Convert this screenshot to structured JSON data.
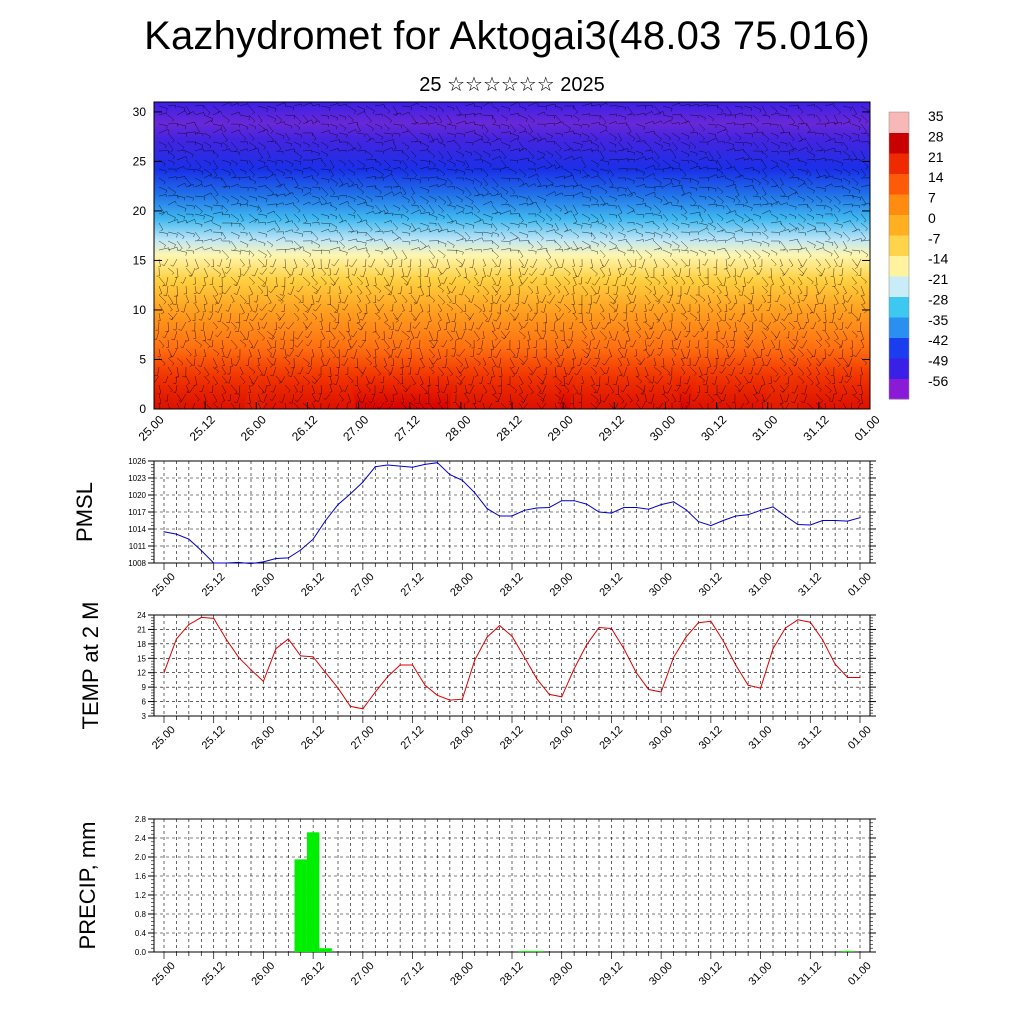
{
  "header": {
    "title": "Kazhydromet for Aktogai3(48.03 75.016)",
    "subtitle": "25 ☆☆☆☆☆☆ 2025"
  },
  "time_labels": [
    "25.00",
    "25.12",
    "26.00",
    "26.12",
    "27.00",
    "27.12",
    "28.00",
    "28.12",
    "29.00",
    "29.12",
    "30.00",
    "30.12",
    "31.00",
    "31.12",
    "01.00"
  ],
  "chart_data": [
    {
      "type": "heatmap",
      "title": "",
      "ylim": [
        0,
        31
      ],
      "y_ticks": [
        "0",
        "5",
        "10",
        "15",
        "20",
        "25",
        "30"
      ],
      "colorbar_labels": [
        "35",
        "28",
        "21",
        "14",
        "7",
        "0",
        "-7",
        "-14",
        "-21",
        "-28",
        "-35",
        "-42",
        "-49",
        "-56"
      ],
      "colormap": [
        "#8a1ad6",
        "#3a1fe6",
        "#1a3df0",
        "#2a8ff0",
        "#3cc8f0",
        "#c8ecf8",
        "#fff3a0",
        "#ffd34a",
        "#ffb020",
        "#ff8c10",
        "#ff5a08",
        "#f02a00",
        "#c80000",
        "#f8b8b8"
      ],
      "note_overlay": "wind barbs"
    },
    {
      "type": "line",
      "ylabel": "PMSL",
      "ylim": [
        1008,
        1026
      ],
      "y_ticks": [
        "1008",
        "1011",
        "1014",
        "1017",
        "1020",
        "1023",
        "1026"
      ],
      "series": [
        {
          "color": "#0000cc",
          "x": [
            0,
            3,
            6,
            9,
            12,
            15,
            18,
            21,
            24,
            27,
            30,
            33,
            36,
            39,
            42,
            45,
            48,
            51,
            54,
            57,
            60,
            63,
            66,
            69,
            72,
            75,
            78,
            81,
            84,
            87,
            90,
            93,
            96,
            99,
            102,
            105,
            108,
            111,
            114,
            117,
            120,
            123,
            126,
            129,
            132,
            135,
            138,
            141,
            144,
            147,
            150,
            153,
            156,
            159,
            162,
            165,
            168
          ],
          "values": [
            1013.5,
            1013.1,
            1012.2,
            1010.2,
            1008.0,
            1008.0,
            1008.1,
            1007.9,
            1008.2,
            1008.8,
            1008.9,
            1010.3,
            1012.2,
            1015.5,
            1018.3,
            1020.2,
            1022.3,
            1025.0,
            1025.3,
            1025.1,
            1024.9,
            1025.4,
            1025.7,
            1023.6,
            1022.6,
            1020.4,
            1017.6,
            1016.3,
            1016.3,
            1017.3,
            1017.7,
            1017.8,
            1019.0,
            1019.0,
            1018.4,
            1017.0,
            1016.8,
            1017.8,
            1017.8,
            1017.5,
            1018.3,
            1018.8,
            1017.4,
            1015.3,
            1014.6,
            1015.5,
            1016.3,
            1016.5,
            1017.3,
            1017.9,
            1016.3,
            1014.8,
            1014.7,
            1015.5,
            1015.5,
            1015.4,
            1016.0
          ]
        }
      ]
    },
    {
      "type": "line",
      "ylabel": "TEMP at 2 M",
      "ylim": [
        3,
        24
      ],
      "y_ticks": [
        "3",
        "6",
        "9",
        "12",
        "15",
        "18",
        "21",
        "24"
      ],
      "series": [
        {
          "color": "#dd0000",
          "x": [
            0,
            3,
            6,
            9,
            12,
            15,
            18,
            21,
            24,
            27,
            30,
            33,
            36,
            39,
            42,
            45,
            48,
            51,
            54,
            57,
            60,
            63,
            66,
            69,
            72,
            75,
            78,
            81,
            84,
            87,
            90,
            93,
            96,
            99,
            102,
            105,
            108,
            111,
            114,
            117,
            120,
            123,
            126,
            129,
            132,
            135,
            138,
            141,
            144,
            147,
            150,
            153,
            156,
            159,
            162,
            165,
            168
          ],
          "values": [
            12.0,
            19.0,
            22.0,
            23.5,
            23.3,
            19.0,
            15.2,
            12.6,
            10.2,
            17.0,
            19.0,
            15.5,
            15.3,
            12.0,
            8.8,
            5.0,
            4.5,
            8.0,
            11.2,
            13.6,
            13.6,
            9.4,
            7.3,
            6.3,
            6.5,
            14.6,
            19.4,
            21.8,
            19.6,
            15.2,
            10.7,
            7.5,
            7.0,
            12.8,
            17.8,
            21.4,
            21.2,
            17.0,
            12.0,
            8.5,
            8.0,
            15.2,
            19.4,
            22.4,
            22.7,
            18.6,
            13.6,
            9.4,
            8.8,
            17.0,
            21.3,
            23.0,
            22.5,
            18.8,
            13.8,
            11.0,
            11.0
          ]
        }
      ]
    },
    {
      "type": "bar",
      "ylabel": "PRECIP, mm",
      "ylim": [
        0,
        2.8
      ],
      "y_ticks": [
        "0.0",
        "0.4",
        "0.8",
        "1.2",
        "1.6",
        "2.0",
        "2.4",
        "2.8"
      ],
      "color": "#00ee00",
      "x": [
        0,
        3,
        6,
        9,
        12,
        15,
        18,
        21,
        24,
        27,
        30,
        33,
        36,
        39,
        42,
        45,
        48,
        51,
        54,
        57,
        60,
        63,
        66,
        69,
        72,
        75,
        78,
        81,
        84,
        87,
        90,
        93,
        96,
        99,
        102,
        105,
        108,
        111,
        114,
        117,
        120,
        123,
        126,
        129,
        132,
        135,
        138,
        141,
        144,
        147,
        150,
        153,
        156,
        159,
        162,
        165,
        168
      ],
      "values": [
        0,
        0,
        0,
        0,
        0,
        0,
        0,
        0,
        0,
        0,
        0,
        1.95,
        2.52,
        0.08,
        0,
        0,
        0,
        0,
        0,
        0,
        0,
        0,
        0,
        0,
        0,
        0,
        0,
        0,
        0,
        0.02,
        0.02,
        0,
        0,
        0,
        0,
        0,
        0,
        0,
        0,
        0,
        0,
        0,
        0,
        0,
        0,
        0,
        0,
        0,
        0,
        0,
        0,
        0,
        0,
        0,
        0,
        0.02,
        0
      ]
    }
  ]
}
